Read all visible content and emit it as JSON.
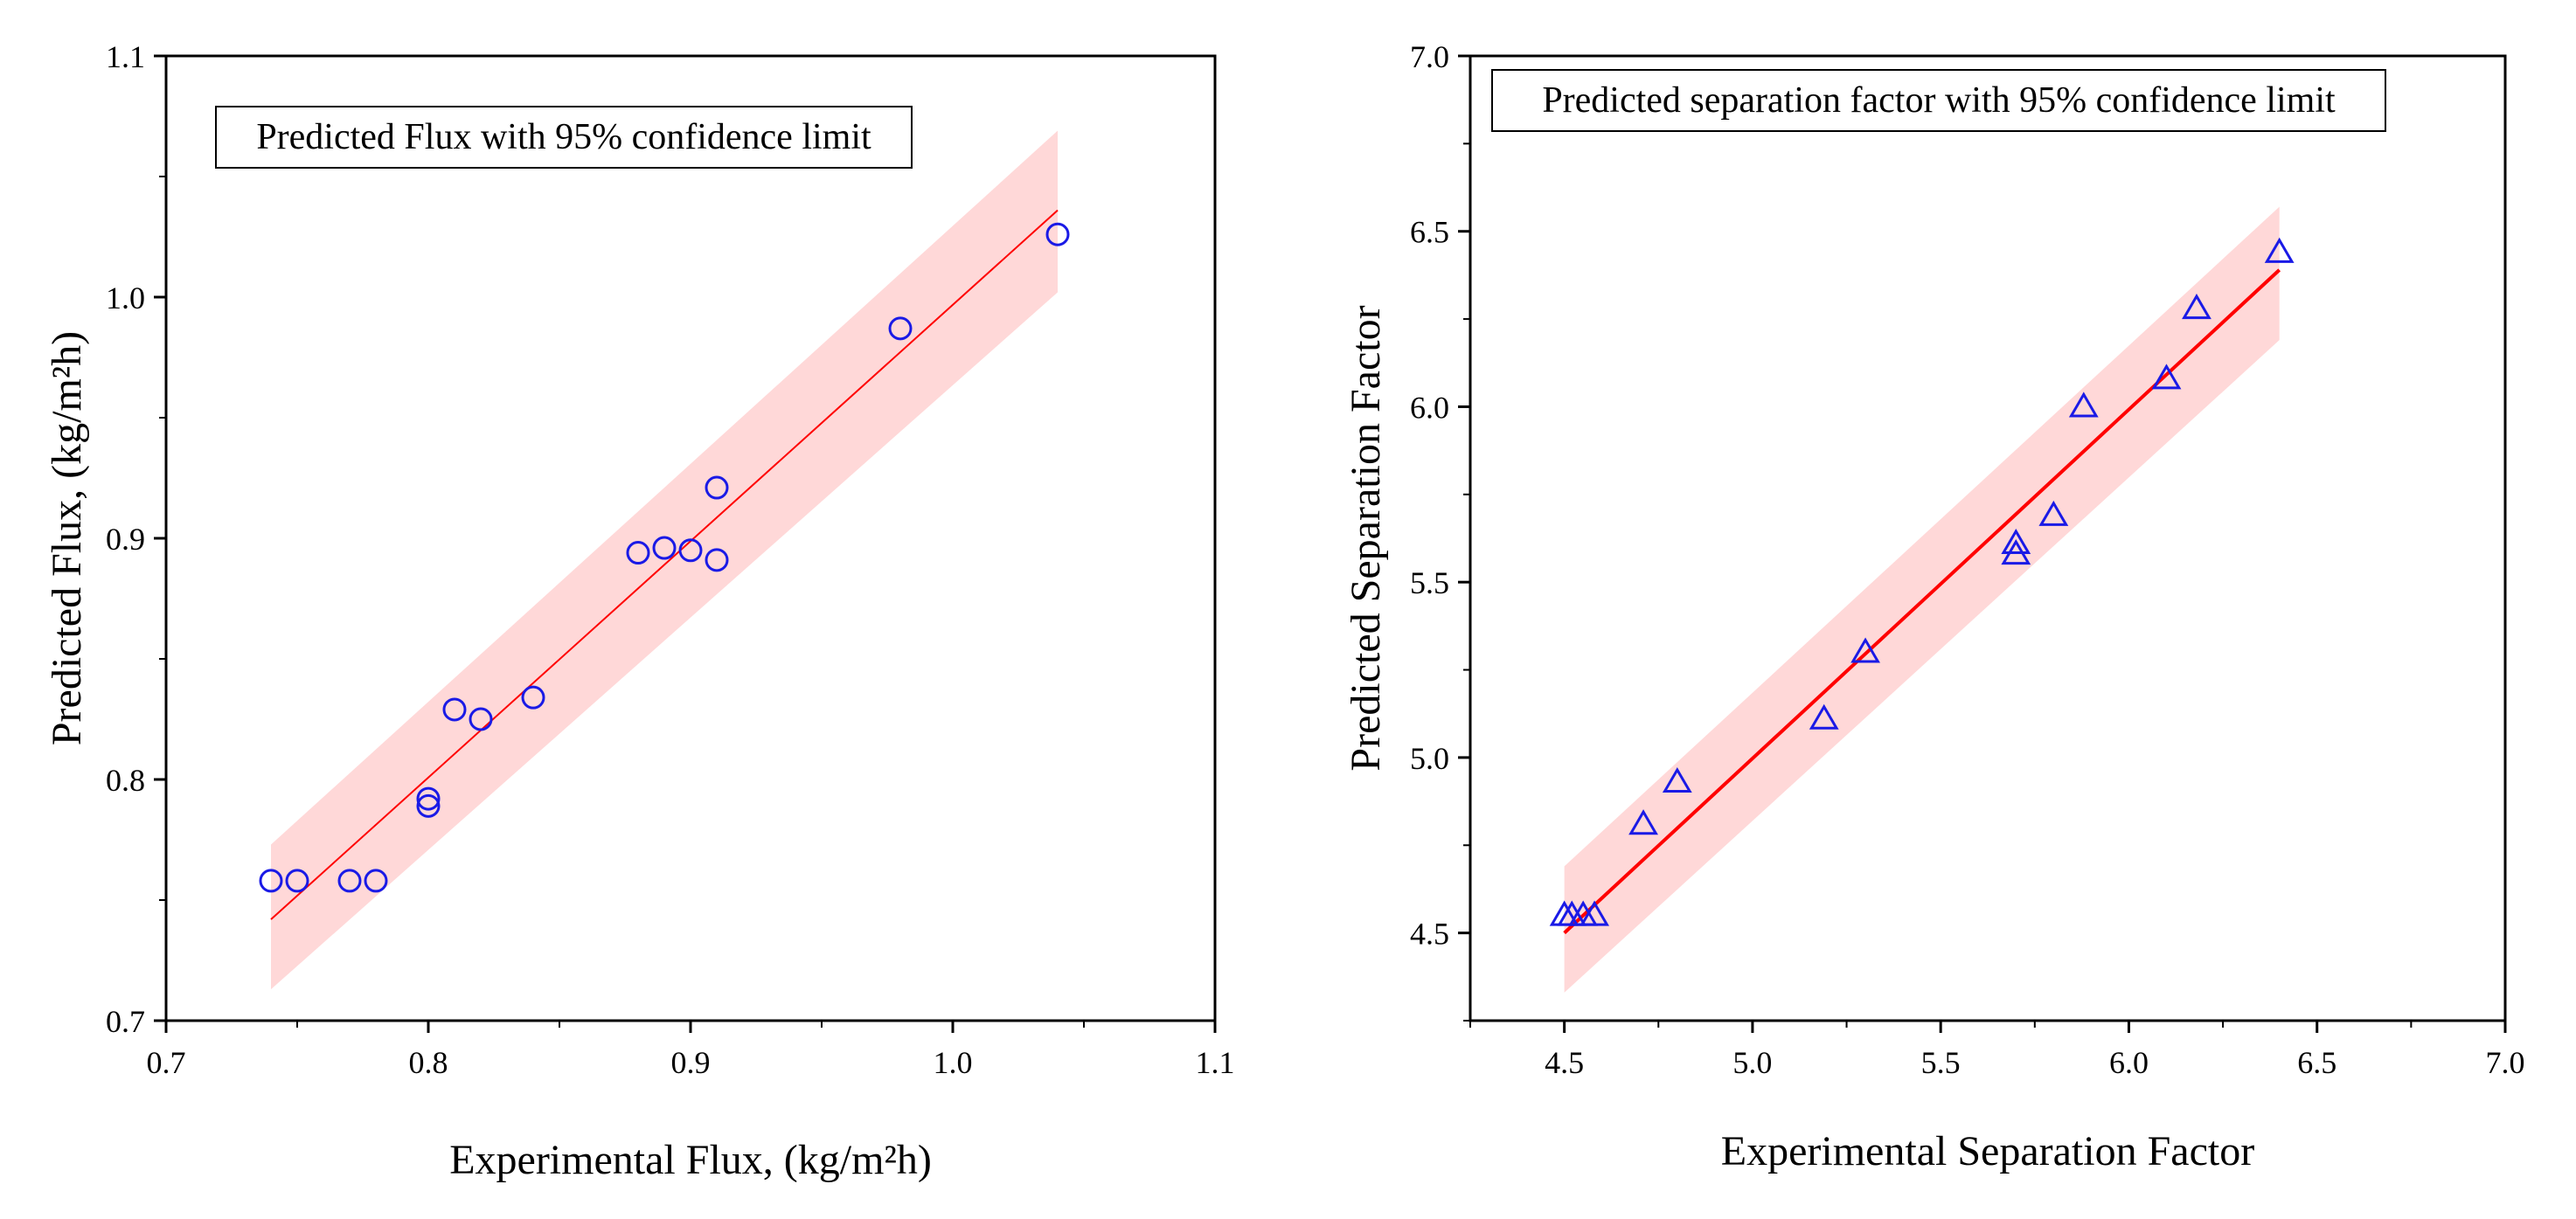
{
  "colors": {
    "marker": "#1a1ae6",
    "fit_line": "#ff0000",
    "band_fill": "#ffc8c8",
    "axis": "#000000",
    "background": "#ffffff"
  },
  "chart_data": [
    {
      "type": "scatter",
      "title": "Predicted Flux with 95% confidence limit",
      "xlabel": "Experimental Flux, (kg/m²h)",
      "ylabel": "Predicted Flux, (kg/m²h)",
      "xlim": [
        0.7,
        1.1
      ],
      "ylim": [
        0.7,
        1.1
      ],
      "xticks": [
        0.7,
        0.8,
        0.9,
        1.0,
        1.1
      ],
      "xtick_labels": [
        "0.7",
        "0.8",
        "0.9",
        "1.0",
        "1.1"
      ],
      "yticks": [
        0.7,
        0.8,
        0.9,
        1.0,
        1.1
      ],
      "ytick_labels": [
        "0.7",
        "0.8",
        "0.9",
        "1.0",
        "1.1"
      ],
      "marker": "circle",
      "points": [
        {
          "x": 0.74,
          "y": 0.758
        },
        {
          "x": 0.75,
          "y": 0.758
        },
        {
          "x": 0.77,
          "y": 0.758
        },
        {
          "x": 0.78,
          "y": 0.758
        },
        {
          "x": 0.8,
          "y": 0.789
        },
        {
          "x": 0.8,
          "y": 0.792
        },
        {
          "x": 0.81,
          "y": 0.829
        },
        {
          "x": 0.82,
          "y": 0.825
        },
        {
          "x": 0.84,
          "y": 0.834
        },
        {
          "x": 0.88,
          "y": 0.894
        },
        {
          "x": 0.89,
          "y": 0.896
        },
        {
          "x": 0.9,
          "y": 0.895
        },
        {
          "x": 0.91,
          "y": 0.891
        },
        {
          "x": 0.91,
          "y": 0.921
        },
        {
          "x": 0.98,
          "y": 0.987
        },
        {
          "x": 1.04,
          "y": 1.026
        }
      ],
      "fit_line": {
        "x": [
          0.74,
          1.04
        ],
        "y": [
          0.742,
          1.036
        ]
      },
      "confidence_band": {
        "x": [
          0.74,
          1.04
        ],
        "lower": [
          0.713,
          1.002
        ],
        "upper": [
          0.773,
          1.069
        ]
      }
    },
    {
      "type": "scatter",
      "title": "Predicted separation factor with 95% confidence limit",
      "xlabel": "Experimental Separation Factor",
      "ylabel": "Predicted Separation Factor",
      "xlim": [
        4.25,
        7.0
      ],
      "ylim": [
        4.25,
        7.0
      ],
      "xticks": [
        4.5,
        5.0,
        5.5,
        6.0,
        6.5,
        7.0
      ],
      "xtick_labels": [
        "4.5",
        "5.0",
        "5.5",
        "6.0",
        "6.5",
        "7.0"
      ],
      "yticks": [
        4.5,
        5.0,
        5.5,
        6.0,
        6.5,
        7.0
      ],
      "ytick_labels": [
        "4.5",
        "5.0",
        "5.5",
        "6.0",
        "6.5",
        "7.0"
      ],
      "marker": "triangle",
      "points": [
        {
          "x": 4.5,
          "y": 4.55
        },
        {
          "x": 4.52,
          "y": 4.55
        },
        {
          "x": 4.55,
          "y": 4.55
        },
        {
          "x": 4.58,
          "y": 4.55
        },
        {
          "x": 4.71,
          "y": 4.81
        },
        {
          "x": 4.8,
          "y": 4.93
        },
        {
          "x": 5.19,
          "y": 5.11
        },
        {
          "x": 5.3,
          "y": 5.3
        },
        {
          "x": 5.7,
          "y": 5.58
        },
        {
          "x": 5.7,
          "y": 5.61
        },
        {
          "x": 5.8,
          "y": 5.69
        },
        {
          "x": 5.88,
          "y": 6.0
        },
        {
          "x": 6.1,
          "y": 6.08
        },
        {
          "x": 6.18,
          "y": 6.28
        },
        {
          "x": 6.4,
          "y": 6.44
        }
      ],
      "fit_line": {
        "x": [
          4.5,
          6.4
        ],
        "y": [
          4.5,
          6.39
        ]
      },
      "confidence_band": {
        "x": [
          4.5,
          6.4
        ],
        "lower": [
          4.33,
          6.19
        ],
        "upper": [
          4.69,
          6.57
        ]
      }
    }
  ]
}
